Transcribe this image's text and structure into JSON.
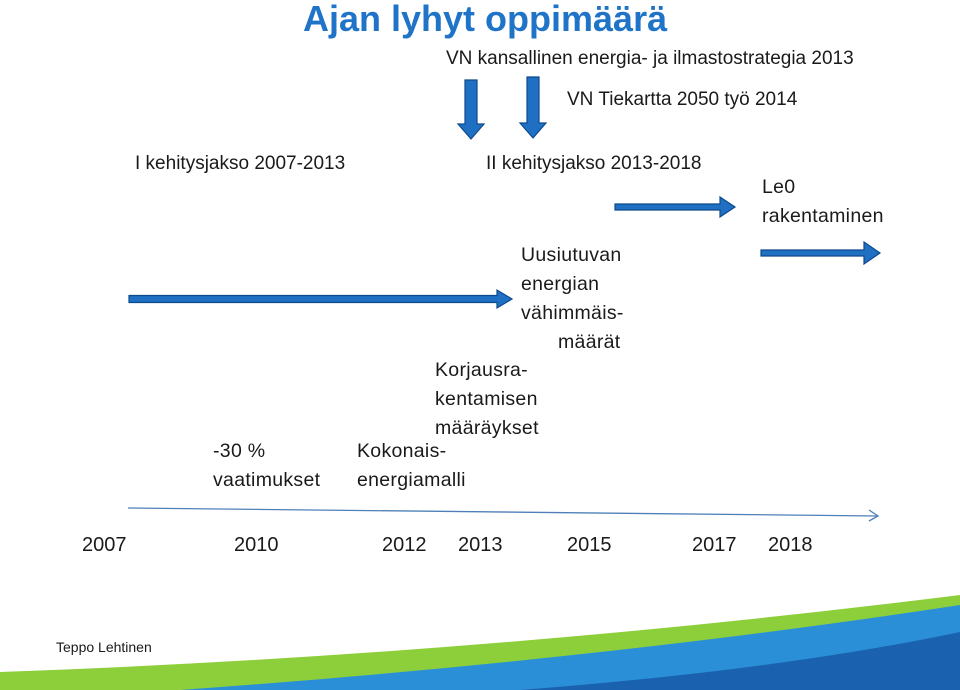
{
  "title": "Ajan lyhyt oppimäärä",
  "strategies": {
    "energy_strategy": "VN kansallinen energia- ja ilmastostrategia 2013",
    "roadmap": "VN Tiekartta 2050 työ 2014"
  },
  "periods": {
    "first": "I kehitysjakso 2007-2013",
    "second": "II kehitysjakso 2013-2018"
  },
  "le0": {
    "line1": "Le0",
    "line2": "rakentaminen"
  },
  "milestones": {
    "requirements_line1": "-30 %",
    "requirements_line2": "vaatimukset",
    "total_energy_line1": "Kokonais-",
    "total_energy_line2": "energiamalli",
    "renovation_line1": "Korjausra-",
    "renovation_line2": "kentamisen",
    "renovation_line3": "määräykset",
    "renewable_line1": "Uusiutuvan",
    "renewable_line2": "energian",
    "renewable_line3": "vähimmäis-",
    "renewable_line4": "määrät"
  },
  "timeline_years": [
    "2007",
    "2010",
    "2012",
    "2013",
    "2015",
    "2017",
    "2018"
  ],
  "author": "Teppo Lehtinen",
  "colors": {
    "title": "#1f74c8",
    "arrow_fill": "#1f6fc2",
    "arrow_stroke": "#0e4a8e",
    "footer_light": "#8ccf3a",
    "footer_blue": "#2b8fd8",
    "footer_dark": "#1a62b0"
  }
}
